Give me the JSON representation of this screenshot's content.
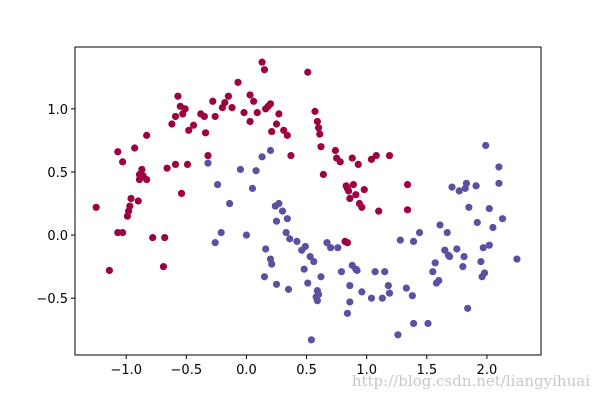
{
  "chart_data": {
    "type": "scatter",
    "xlim": [
      -1.426,
      2.45
    ],
    "ylim": [
      -0.95,
      1.49
    ],
    "xticks": [
      {
        "value": -1,
        "label": "−1.0"
      },
      {
        "value": -0.5,
        "label": "−0.5"
      },
      {
        "value": 0,
        "label": "0.0"
      },
      {
        "value": 0.5,
        "label": "0.5"
      },
      {
        "value": 1,
        "label": "1.0"
      },
      {
        "value": 1.5,
        "label": "1.5"
      },
      {
        "value": 2,
        "label": "2.0"
      }
    ],
    "yticks": [
      {
        "value": -0.5,
        "label": "−0.5"
      },
      {
        "value": 0,
        "label": "0.0"
      },
      {
        "value": 0.5,
        "label": "0.5"
      },
      {
        "value": 1,
        "label": "1.0"
      }
    ],
    "watermark": "http://blog.csdn.net/liangyihuai",
    "series": [
      {
        "color": "#9e0142",
        "x": [
          -1.25,
          -1.14,
          -1.07,
          -1.07,
          -1.03,
          -1.03,
          -0.99,
          -0.98,
          -0.97,
          -0.96,
          -0.93,
          -0.9,
          -0.89,
          -0.89,
          -0.87,
          -0.86,
          -0.83,
          -0.83,
          -0.78,
          -0.69,
          -0.68,
          -0.66,
          -0.62,
          -0.59,
          -0.59,
          -0.55,
          -0.57,
          -0.54,
          -0.53,
          -0.49,
          -0.48,
          -0.51,
          -0.44,
          -0.38,
          -0.35,
          -0.34,
          -0.32,
          -0.28,
          -0.26,
          -0.2,
          -0.18,
          -0.15,
          -0.12,
          -0.07,
          -0.02,
          0.03,
          0.03,
          0.06,
          0.09,
          0.13,
          0.15,
          0.16,
          0.18,
          0.2,
          0.21,
          0.25,
          0.27,
          0.31,
          0.34,
          0.37,
          0.51,
          0.57,
          0.59,
          0.6,
          0.61,
          0.62,
          0.64,
          0.74,
          0.75,
          0.78,
          0.83,
          0.82,
          0.84,
          0.84,
          0.85,
          0.86,
          0.88,
          0.89,
          0.91,
          0.93,
          0.94,
          0.96,
          0.98,
          1.04,
          1.08,
          1.1,
          1.19,
          1.34,
          1.34
        ],
        "values": [
          0.22,
          -0.28,
          0.66,
          0.02,
          0.02,
          0.58,
          0.15,
          0.19,
          0.23,
          0.29,
          0.69,
          0.27,
          0.44,
          0.48,
          0.52,
          0.47,
          0.44,
          0.79,
          -0.02,
          -0.25,
          -0.02,
          0.53,
          0.88,
          0.56,
          0.94,
          1.02,
          1.1,
          0.33,
          0.96,
          0.56,
          0.83,
          1.0,
          0.87,
          0.96,
          0.94,
          0.81,
          0.63,
          1.06,
          0.94,
          1.01,
          1.05,
          1.1,
          1.01,
          1.21,
          0.97,
          0.9,
          1.11,
          1.06,
          0.97,
          1.37,
          1.31,
          1.0,
          1.02,
          1.04,
          0.82,
          0.88,
          0.96,
          0.83,
          0.79,
          0.63,
          1.29,
          0.98,
          0.9,
          0.85,
          0.8,
          0.7,
          0.48,
          0.67,
          0.61,
          0.58,
          0.39,
          -0.05,
          -0.06,
          0.37,
          0.35,
          0.29,
          0.61,
          0.4,
          0.32,
          0.56,
          0.25,
          0.22,
          0.36,
          0.6,
          0.63,
          0.19,
          0.63,
          0.4,
          0.2
        ]
      },
      {
        "color": "#5e4fa2",
        "x": [
          -0.32,
          -0.26,
          -0.24,
          -0.21,
          -0.14,
          -0.05,
          0.0,
          0.05,
          0.08,
          0.13,
          0.15,
          0.16,
          0.2,
          0.2,
          0.21,
          0.24,
          0.25,
          0.25,
          0.27,
          0.3,
          0.33,
          0.34,
          0.36,
          0.35,
          0.42,
          0.46,
          0.48,
          0.49,
          0.51,
          0.53,
          0.54,
          0.56,
          0.58,
          0.59,
          0.59,
          0.6,
          0.62,
          0.67,
          0.7,
          0.76,
          0.79,
          0.84,
          0.86,
          0.86,
          0.88,
          0.91,
          0.92,
          0.96,
          1.04,
          1.07,
          1.13,
          1.15,
          1.18,
          1.19,
          1.26,
          1.28,
          1.33,
          1.38,
          1.39,
          1.39,
          1.44,
          1.51,
          1.55,
          1.57,
          1.58,
          1.6,
          1.65,
          1.67,
          1.68,
          1.69,
          1.71,
          1.75,
          1.77,
          1.8,
          1.81,
          1.82,
          1.83,
          1.84,
          1.85,
          1.92,
          1.95,
          1.96,
          1.97,
          1.98,
          1.99,
          2.02,
          2.02,
          2.05,
          2.1,
          2.1,
          2.13,
          2.25,
          1.91,
          1.61
        ],
        "values": [
          0.57,
          -0.06,
          0.4,
          0.02,
          0.25,
          0.52,
          0.0,
          0.37,
          0.51,
          0.62,
          -0.33,
          -0.11,
          0.67,
          -0.19,
          -0.23,
          0.23,
          -0.39,
          0.11,
          0.25,
          0.19,
          0.02,
          0.13,
          -0.03,
          -0.43,
          -0.05,
          -0.12,
          -0.27,
          -0.09,
          -0.38,
          -0.17,
          -0.83,
          -0.21,
          -0.49,
          -0.44,
          -0.52,
          -0.47,
          -0.33,
          -0.06,
          -0.1,
          -0.1,
          -0.29,
          -0.62,
          -0.53,
          -0.4,
          -0.24,
          -0.27,
          -0.28,
          -0.45,
          -0.5,
          -0.29,
          -0.5,
          -0.29,
          -0.4,
          -0.46,
          -0.79,
          -0.04,
          -0.42,
          -0.48,
          -0.05,
          -0.7,
          0.02,
          -0.7,
          -0.29,
          -0.22,
          -0.38,
          -0.36,
          -0.12,
          0.02,
          -0.16,
          -0.17,
          0.38,
          -0.11,
          0.35,
          -0.25,
          -0.17,
          0.37,
          0.41,
          -0.58,
          0.22,
          0.1,
          -0.21,
          -0.33,
          -0.1,
          -0.3,
          0.71,
          -0.08,
          0.21,
          0.06,
          0.41,
          0.54,
          0.13,
          -0.19,
          0.39,
          0.08
        ]
      }
    ]
  }
}
